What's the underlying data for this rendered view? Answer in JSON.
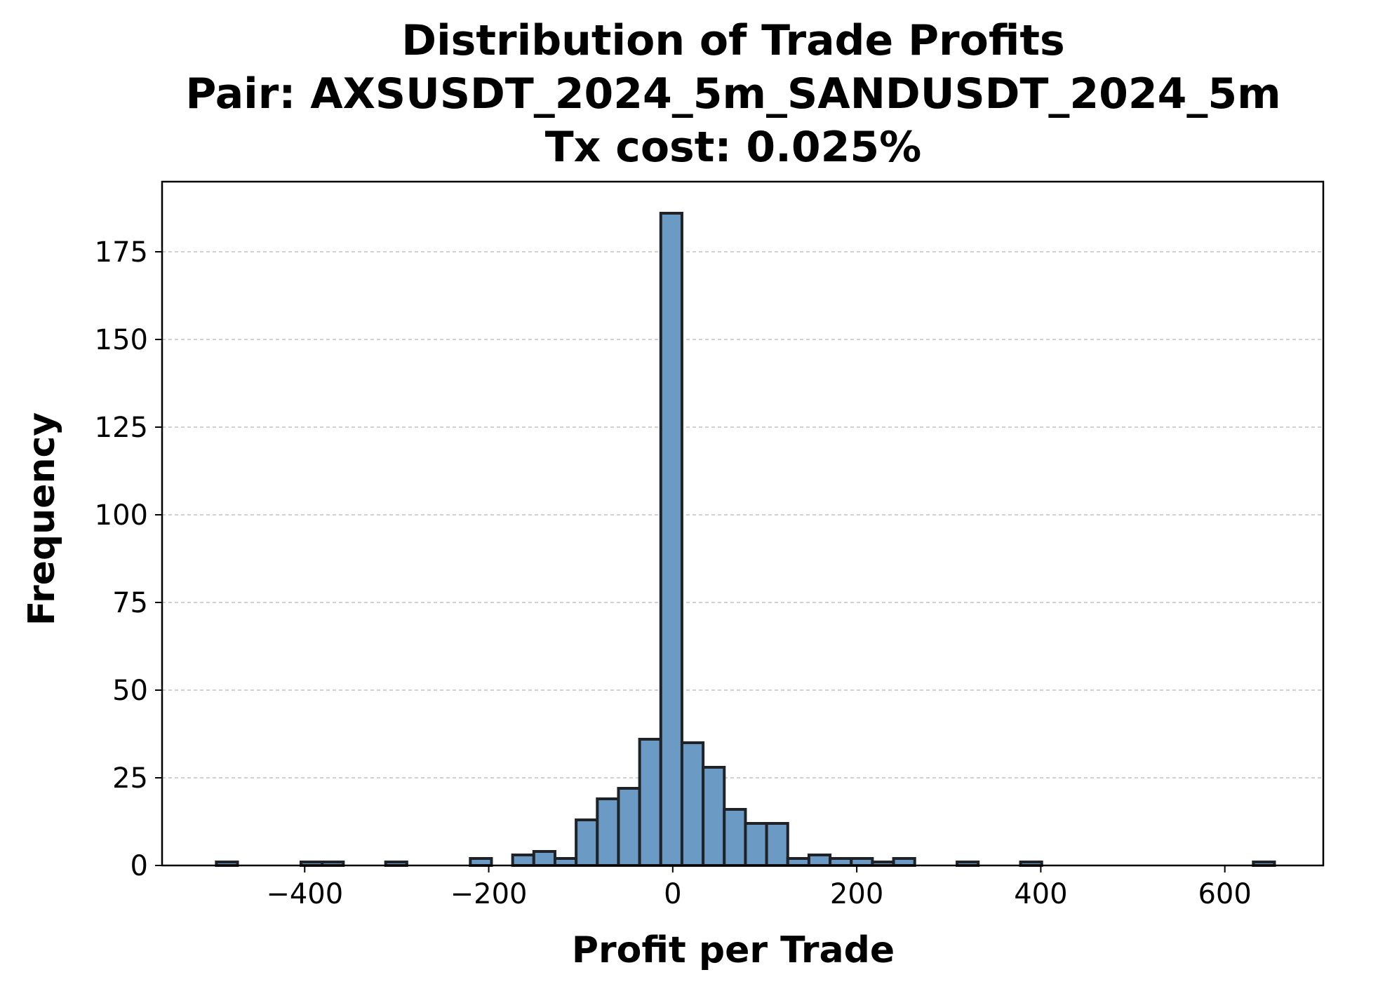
{
  "chart_data": {
    "type": "bar",
    "title_lines": [
      "Distribution of Trade Profits",
      "Pair: AXSUSDT_2024_5m_SANDUSDT_2024_5m",
      "Tx cost: 0.025%"
    ],
    "xlabel": "Profit per Trade",
    "ylabel": "Frequency",
    "xlim": [
      -555,
      707
    ],
    "ylim": [
      0,
      195
    ],
    "x_ticks": [
      -400,
      -200,
      0,
      200,
      400,
      600
    ],
    "x_tick_labels": [
      "−400",
      "−200",
      "0",
      "200",
      "400",
      "600"
    ],
    "y_ticks": [
      0,
      25,
      50,
      75,
      100,
      125,
      150,
      175
    ],
    "y_tick_labels": [
      "0",
      "25",
      "50",
      "75",
      "100",
      "125",
      "150",
      "175"
    ],
    "grid": "y-dashed",
    "legend": "none",
    "colors": {
      "bar_fill": "#6b9bc4",
      "bar_edge": "#1f2328",
      "grid": "#c2c2c2",
      "axes": "#000000"
    },
    "bins": [
      {
        "x0": -496,
        "x1": -473,
        "value": 1
      },
      {
        "x0": -404,
        "x1": -381,
        "value": 1
      },
      {
        "x0": -381,
        "x1": -358,
        "value": 1
      },
      {
        "x0": -312,
        "x1": -289,
        "value": 1
      },
      {
        "x0": -220,
        "x1": -197,
        "value": 2
      },
      {
        "x0": -174,
        "x1": -151,
        "value": 3
      },
      {
        "x0": -151,
        "x1": -128,
        "value": 4
      },
      {
        "x0": -128,
        "x1": -105,
        "value": 2
      },
      {
        "x0": -105,
        "x1": -82,
        "value": 13
      },
      {
        "x0": -82,
        "x1": -59,
        "value": 19
      },
      {
        "x0": -59,
        "x1": -36,
        "value": 22
      },
      {
        "x0": -36,
        "x1": -13,
        "value": 36
      },
      {
        "x0": -13,
        "x1": 10,
        "value": 186
      },
      {
        "x0": 10,
        "x1": 33,
        "value": 35
      },
      {
        "x0": 33,
        "x1": 56,
        "value": 28
      },
      {
        "x0": 56,
        "x1": 79,
        "value": 16
      },
      {
        "x0": 79,
        "x1": 102,
        "value": 12
      },
      {
        "x0": 102,
        "x1": 125,
        "value": 12
      },
      {
        "x0": 125,
        "x1": 148,
        "value": 2
      },
      {
        "x0": 148,
        "x1": 171,
        "value": 3
      },
      {
        "x0": 171,
        "x1": 194,
        "value": 2
      },
      {
        "x0": 194,
        "x1": 217,
        "value": 2
      },
      {
        "x0": 217,
        "x1": 240,
        "value": 1
      },
      {
        "x0": 240,
        "x1": 263,
        "value": 2
      },
      {
        "x0": 309,
        "x1": 332,
        "value": 1
      },
      {
        "x0": 378,
        "x1": 401,
        "value": 1
      },
      {
        "x0": 631,
        "x1": 654,
        "value": 1
      }
    ]
  }
}
